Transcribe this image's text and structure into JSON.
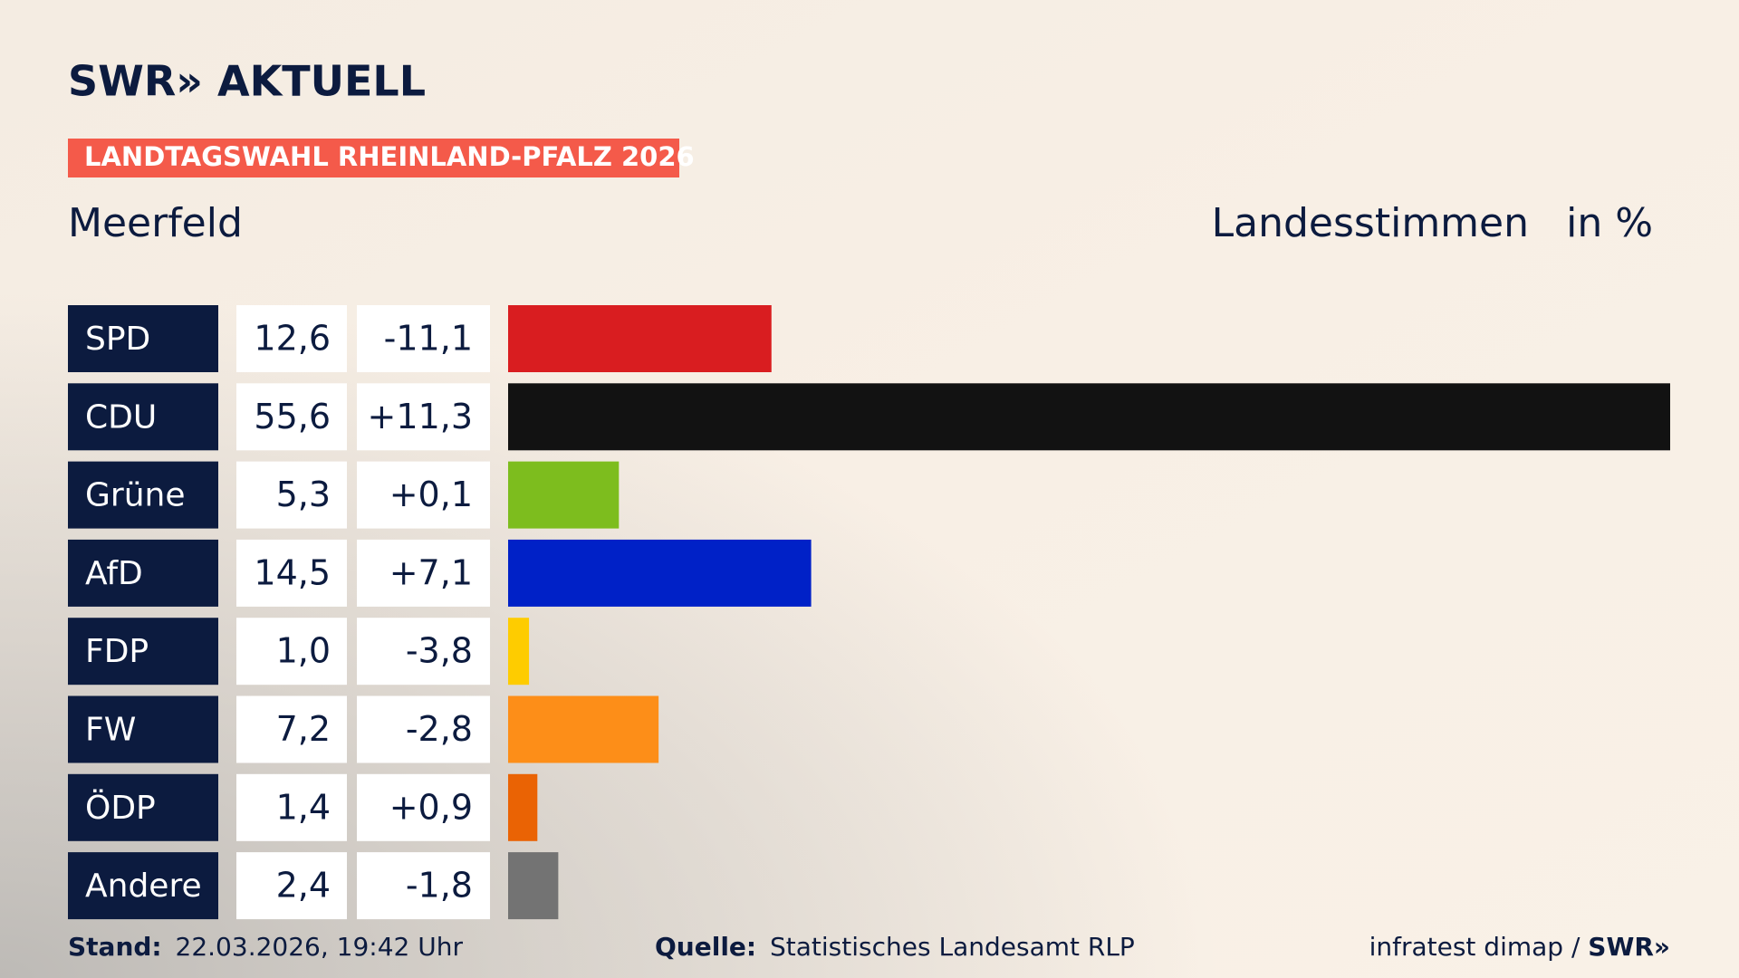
{
  "chart_data": {
    "type": "bar",
    "logo": "SWR» AKTUELL",
    "title": "LANDTAGSWAHL RHEINLAND-PFALZ 2026",
    "subtitle": "Meerfeld",
    "measure": "Landesstimmen",
    "unit": "in %",
    "categories": [
      "SPD",
      "CDU",
      "Grüne",
      "AfD",
      "FDP",
      "FW",
      "ÖDP",
      "Andere"
    ],
    "values": [
      12.6,
      55.6,
      5.3,
      14.5,
      1.0,
      7.2,
      1.4,
      2.4
    ],
    "value_labels": [
      "12,6",
      "55,6",
      "5,3",
      "14,5",
      "1,0",
      "7,2",
      "1,4",
      "2,4"
    ],
    "changes": [
      "-11,1",
      "+11,3",
      "+0,1",
      "+7,1",
      "-3,8",
      "-2,8",
      "+0,9",
      "-1,8"
    ],
    "colors": [
      "#d91d20",
      "#121212",
      "#7dbd1e",
      "#0021c7",
      "#fecc00",
      "#fd8e18",
      "#ea6304",
      "#737373"
    ],
    "footer": {
      "stand_label": "Stand:",
      "stand": "22.03.2026, 19:42 Uhr",
      "source_label": "Quelle:",
      "source": "Statistisches Landesamt RLP",
      "credit": "infratest dimap / ",
      "credit_logo": "SWR»"
    }
  }
}
